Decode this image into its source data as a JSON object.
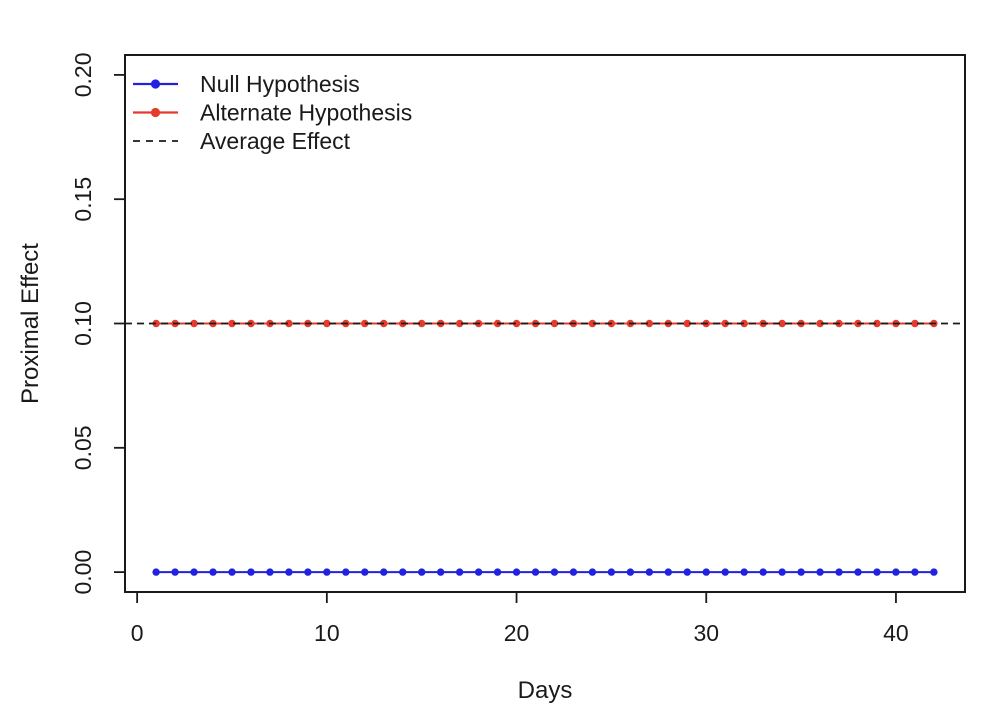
{
  "chart_data": {
    "type": "line",
    "title": "",
    "xlabel": "Days",
    "ylabel": "Proximal Effect",
    "grid": false,
    "background": "#ffffff",
    "axis_color": "#1a1a1a",
    "xlim": [
      -0.64,
      43.64
    ],
    "ylim": [
      -0.008,
      0.208
    ],
    "x_ticks": [
      {
        "v": 0,
        "label": "0"
      },
      {
        "v": 10,
        "label": "10"
      },
      {
        "v": 20,
        "label": "20"
      },
      {
        "v": 30,
        "label": "30"
      },
      {
        "v": 40,
        "label": "40"
      }
    ],
    "y_ticks": [
      {
        "v": 0.0,
        "label": "0.00"
      },
      {
        "v": 0.05,
        "label": "0.05"
      },
      {
        "v": 0.1,
        "label": "0.10"
      },
      {
        "v": 0.15,
        "label": "0.15"
      },
      {
        "v": 0.2,
        "label": "0.20"
      }
    ],
    "x": [
      1,
      2,
      3,
      4,
      5,
      6,
      7,
      8,
      9,
      10,
      11,
      12,
      13,
      14,
      15,
      16,
      17,
      18,
      19,
      20,
      21,
      22,
      23,
      24,
      25,
      26,
      27,
      28,
      29,
      30,
      31,
      32,
      33,
      34,
      35,
      36,
      37,
      38,
      39,
      40,
      41,
      42
    ],
    "series": [
      {
        "name": "Null Hypothesis",
        "color": "#2121df",
        "marker": "circle",
        "linestyle": "solid",
        "values": [
          0,
          0,
          0,
          0,
          0,
          0,
          0,
          0,
          0,
          0,
          0,
          0,
          0,
          0,
          0,
          0,
          0,
          0,
          0,
          0,
          0,
          0,
          0,
          0,
          0,
          0,
          0,
          0,
          0,
          0,
          0,
          0,
          0,
          0,
          0,
          0,
          0,
          0,
          0,
          0,
          0,
          0
        ]
      },
      {
        "name": "Alternate Hypothesis",
        "color": "#e43b2d",
        "marker": "circle",
        "linestyle": "solid",
        "values": [
          0.1,
          0.1,
          0.1,
          0.1,
          0.1,
          0.1,
          0.1,
          0.1,
          0.1,
          0.1,
          0.1,
          0.1,
          0.1,
          0.1,
          0.1,
          0.1,
          0.1,
          0.1,
          0.1,
          0.1,
          0.1,
          0.1,
          0.1,
          0.1,
          0.1,
          0.1,
          0.1,
          0.1,
          0.1,
          0.1,
          0.1,
          0.1,
          0.1,
          0.1,
          0.1,
          0.1,
          0.1,
          0.1,
          0.1,
          0.1,
          0.1,
          0.1
        ]
      }
    ],
    "annotations": [
      {
        "type": "hline",
        "y": 0.1,
        "label": "Average Effect",
        "color": "#1a1a1a",
        "linestyle": "dashed"
      }
    ],
    "legend": {
      "position": "top-left",
      "box": false,
      "entries": [
        {
          "label": "Null Hypothesis",
          "color": "#2121df",
          "style": "solid-dot"
        },
        {
          "label": "Alternate Hypothesis",
          "color": "#e43b2d",
          "style": "solid-dot"
        },
        {
          "label": "Average Effect",
          "color": "#1a1a1a",
          "style": "dashed"
        }
      ]
    }
  }
}
